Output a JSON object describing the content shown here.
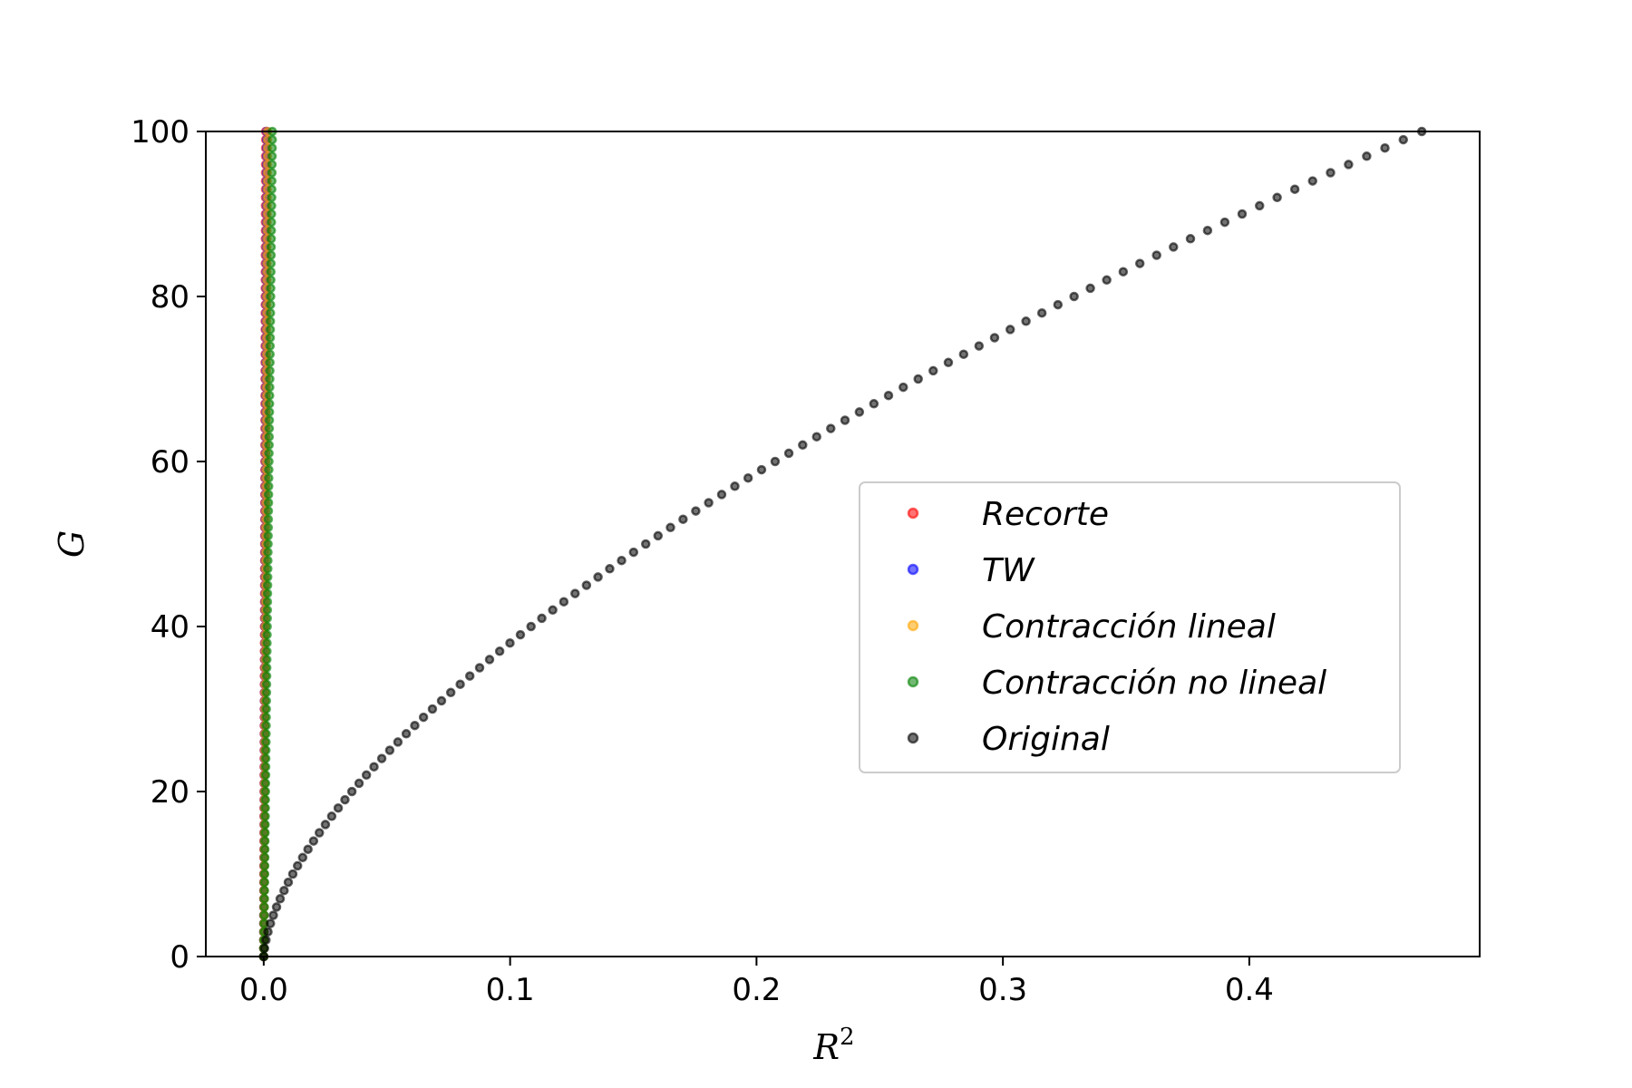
{
  "chart_data": {
    "type": "scatter",
    "title": "",
    "xlabel": "R",
    "xlabel_superscript": "2",
    "ylabel": "G",
    "xlim": [
      -0.0235,
      0.4935
    ],
    "ylim": [
      0,
      100
    ],
    "xticks": [
      0.0,
      0.1,
      0.2,
      0.3,
      0.4
    ],
    "xtick_labels": [
      "0.0",
      "0.1",
      "0.2",
      "0.3",
      "0.4"
    ],
    "yticks": [
      0,
      20,
      40,
      60,
      80,
      100
    ],
    "ytick_labels": [
      "0",
      "20",
      "40",
      "60",
      "80",
      "100"
    ],
    "grid": false,
    "legend_position": "center-right",
    "series": [
      {
        "name": "Recorte",
        "color": "#ff0000",
        "model": "near_zero",
        "x_at_max_y": 0.0008,
        "x_points": [
          0,
          100
        ],
        "n_points": 101
      },
      {
        "name": "TW",
        "color": "#0000ff",
        "model": "near_zero",
        "x_at_max_y": 0.0012,
        "x_points": [
          0,
          100
        ],
        "n_points": 101
      },
      {
        "name": "Contracción lineal",
        "color": "#ffa500",
        "model": "near_zero",
        "x_at_max_y": 0.0015,
        "x_points": [
          0,
          100
        ],
        "n_points": 101
      },
      {
        "name": "Contracción no lineal",
        "color": "#008000",
        "model": "near_zero",
        "x_at_max_y": 0.0035,
        "x_points": [
          0,
          100
        ],
        "n_points": 101
      },
      {
        "name": "Original",
        "color": "#000000",
        "model": "power",
        "x_at_max_y": 0.47,
        "exponent": 1.6,
        "n_points": 101
      }
    ]
  }
}
